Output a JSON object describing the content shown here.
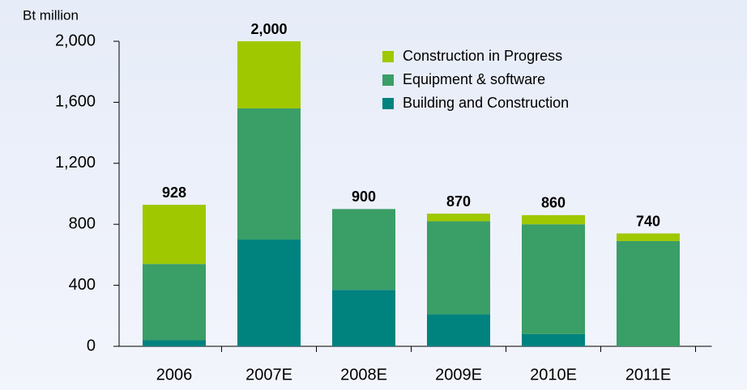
{
  "chart_data": {
    "type": "stacked_bar",
    "y_label": "Bt million",
    "categories": [
      "2006",
      "2007E",
      "2008E",
      "2009E",
      "2010E",
      "2011E"
    ],
    "series": [
      {
        "name": "Building and Construction",
        "color": "#00827f",
        "values": [
          40,
          700,
          370,
          210,
          80,
          0
        ]
      },
      {
        "name": "Equipment & software",
        "color": "#3a9e67",
        "values": [
          500,
          860,
          530,
          610,
          720,
          690
        ]
      },
      {
        "name": "Construction in Progress",
        "color": "#9fc800",
        "values": [
          388,
          440,
          0,
          50,
          60,
          50
        ]
      }
    ],
    "totals": [
      928,
      2000,
      900,
      870,
      860,
      740
    ],
    "total_labels": [
      "928",
      "2,000",
      "900",
      "870",
      "860",
      "740"
    ],
    "ylim": [
      0,
      2000
    ],
    "yticks": [
      0,
      {
        "value": 400,
        "label": "400"
      },
      {
        "value": 800,
        "label": "800"
      },
      {
        "value": 1200,
        "label": "1,200"
      },
      {
        "value": 1600,
        "label": "1,600"
      },
      {
        "value": 2000,
        "label": "2,000"
      }
    ],
    "legend": "top-right"
  }
}
